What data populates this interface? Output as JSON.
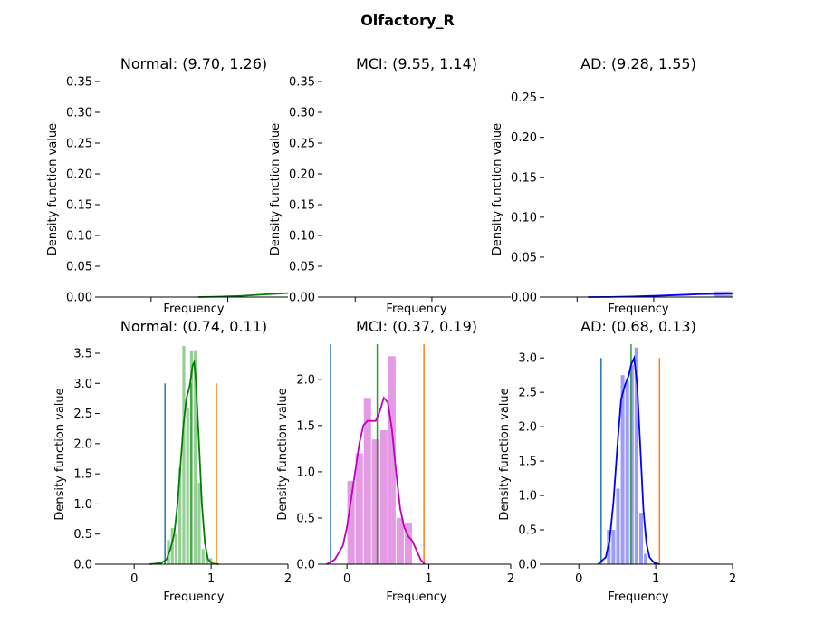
{
  "figure": {
    "title": "Olfactory_R"
  },
  "colors": {
    "normal": "#008000",
    "mci": "#bf00bf",
    "ad": "#0000ff",
    "normal_hist": "#82c782",
    "mci_hist": "#e088e0",
    "ad_hist": "#8c8cf5",
    "vline_left": "#1f77b4",
    "vline_mid": "#2ca02c",
    "vline_right": "#ff7f0e"
  },
  "chart_data": [
    {
      "type": "line",
      "title": "Normal: (9.70, 1.26)",
      "xlabel": "Frequency",
      "ylabel": "Density function value",
      "xlim": [
        0.1,
        1.82
      ],
      "ylim": [
        0,
        0.35
      ],
      "yticks": [
        "0.00",
        "0.05",
        "0.10",
        "0.15",
        "0.20",
        "0.25",
        "0.30",
        "0.35"
      ],
      "ytick_values": [
        0,
        0.05,
        0.1,
        0.15,
        0.2,
        0.25,
        0.3,
        0.35
      ],
      "xtick_values": [
        0.57,
        1.27
      ],
      "show_xtick_labels": false,
      "color_key": "normal",
      "curve": {
        "x": [
          1.0,
          1.2,
          1.4,
          1.6,
          1.82
        ],
        "y": [
          0.0,
          0.0008,
          0.002,
          0.0042,
          0.0065
        ]
      },
      "histogram": null,
      "vlines": []
    },
    {
      "type": "line",
      "title": "MCI: (9.55, 1.14)",
      "xlabel": "Frequency",
      "ylabel": "Density function value",
      "xlim": [
        0.1,
        1.82
      ],
      "ylim": [
        0,
        0.35
      ],
      "yticks": [
        "0.00",
        "0.05",
        "0.10",
        "0.15",
        "0.20",
        "0.25",
        "0.30",
        "0.35"
      ],
      "ytick_values": [
        0,
        0.05,
        0.1,
        0.15,
        0.2,
        0.25,
        0.3,
        0.35
      ],
      "xtick_values": [
        0.4,
        1.1
      ],
      "show_xtick_labels": false,
      "color_key": "mci",
      "curve": null,
      "histogram": null,
      "vlines": []
    },
    {
      "type": "line",
      "title": "AD: (9.28, 1.55)",
      "xlabel": "Frequency",
      "ylabel": "Density function value",
      "xlim": [
        0.1,
        1.82
      ],
      "ylim": [
        0,
        0.27
      ],
      "yticks": [
        "0.00",
        "0.05",
        "0.10",
        "0.15",
        "0.20",
        "0.25"
      ],
      "ytick_values": [
        0,
        0.05,
        0.1,
        0.15,
        0.2,
        0.25
      ],
      "xtick_values": [
        0.4,
        1.1
      ],
      "show_xtick_labels": false,
      "color_key": "ad",
      "curve": {
        "x": [
          0.5,
          0.7,
          0.9,
          1.1,
          1.3,
          1.5,
          1.7,
          1.82
        ],
        "y": [
          0.0,
          0.0001,
          0.0007,
          0.0015,
          0.0025,
          0.0035,
          0.0042,
          0.0045
        ]
      },
      "histogram": {
        "bins": [
          [
            1.65,
            1.82
          ]
        ],
        "heights": [
          0.007
        ]
      },
      "vlines": []
    },
    {
      "type": "line",
      "title": "Normal: (0.74, 0.11)",
      "xlabel": "Frequency",
      "ylabel": "Density function value",
      "xlim": [
        -0.45,
        2
      ],
      "ylim": [
        0,
        3.65
      ],
      "yticks": [
        "0.0",
        "0.5",
        "1.0",
        "1.5",
        "2.0",
        "2.5",
        "3.0",
        "3.5"
      ],
      "ytick_values": [
        0,
        0.5,
        1,
        1.5,
        2,
        2.5,
        3,
        3.5
      ],
      "xtick_values": [
        0,
        1,
        2
      ],
      "xtick_labels": [
        "0",
        "1",
        "2"
      ],
      "show_xtick_labels": true,
      "color_key": "normal",
      "curve": {
        "x": [
          0.2,
          0.35,
          0.42,
          0.47,
          0.52,
          0.56,
          0.6,
          0.64,
          0.68,
          0.7,
          0.72,
          0.74,
          0.76,
          0.78,
          0.8,
          0.82,
          0.85,
          0.88,
          0.92,
          0.96,
          1.02,
          1.1
        ],
        "y": [
          0.0,
          0.02,
          0.08,
          0.25,
          0.5,
          0.95,
          1.6,
          2.3,
          2.75,
          2.85,
          2.95,
          3.1,
          3.3,
          3.35,
          3.1,
          2.6,
          1.8,
          1.0,
          0.35,
          0.08,
          0.01,
          0.0
        ]
      },
      "histogram": {
        "bins": [
          [
            0.42,
            0.47
          ],
          [
            0.47,
            0.52
          ],
          [
            0.52,
            0.57
          ],
          [
            0.57,
            0.62
          ],
          [
            0.62,
            0.67
          ],
          [
            0.67,
            0.72
          ],
          [
            0.72,
            0.77
          ],
          [
            0.77,
            0.82
          ],
          [
            0.82,
            0.87
          ],
          [
            0.87,
            0.92
          ],
          [
            0.92,
            0.97
          ],
          [
            0.97,
            1.02
          ]
        ],
        "heights": [
          0.4,
          0.6,
          0.5,
          1.6,
          3.62,
          2.6,
          3.55,
          3.55,
          1.35,
          0.25,
          0.15,
          0.1
        ]
      },
      "vlines": [
        {
          "x": 0.4,
          "y": 3.0,
          "color_key": "vline_left"
        },
        {
          "x": 0.74,
          "y": 3.0,
          "color_key": "vline_mid"
        },
        {
          "x": 1.07,
          "y": 3.0,
          "color_key": "vline_right"
        }
      ]
    },
    {
      "type": "line",
      "title": "MCI: (0.37, 0.19)",
      "xlabel": "Frequency",
      "ylabel": "Density function value",
      "xlim": [
        -0.3,
        2
      ],
      "ylim": [
        0,
        2.38
      ],
      "yticks": [
        "0.0",
        "0.5",
        "1.0",
        "1.5",
        "2.0"
      ],
      "ytick_values": [
        0,
        0.5,
        1,
        1.5,
        2
      ],
      "xtick_values": [
        0,
        1,
        2
      ],
      "xtick_labels": [
        "0",
        "1",
        "2"
      ],
      "show_xtick_labels": true,
      "color_key": "mci",
      "curve": {
        "x": [
          -0.25,
          -0.15,
          -0.05,
          0.0,
          0.05,
          0.1,
          0.15,
          0.2,
          0.25,
          0.3,
          0.35,
          0.4,
          0.45,
          0.5,
          0.55,
          0.6,
          0.65,
          0.7,
          0.75,
          0.8,
          0.85,
          0.9,
          0.95
        ],
        "y": [
          0.0,
          0.05,
          0.2,
          0.4,
          0.7,
          1.0,
          1.3,
          1.5,
          1.55,
          1.55,
          1.55,
          1.65,
          1.8,
          1.75,
          1.45,
          1.0,
          0.6,
          0.4,
          0.3,
          0.25,
          0.15,
          0.05,
          0.0
        ]
      },
      "histogram": {
        "bins": [
          [
            0.0,
            0.1
          ],
          [
            0.1,
            0.2
          ],
          [
            0.2,
            0.3
          ],
          [
            0.3,
            0.4
          ],
          [
            0.4,
            0.5
          ],
          [
            0.5,
            0.6
          ],
          [
            0.6,
            0.7
          ],
          [
            0.7,
            0.8
          ]
        ],
        "heights": [
          0.9,
          1.2,
          1.8,
          1.35,
          1.45,
          2.25,
          0.5,
          0.45
        ]
      },
      "vlines": [
        {
          "x": -0.2,
          "y": 2.38,
          "color_key": "vline_left"
        },
        {
          "x": 0.37,
          "y": 2.38,
          "color_key": "vline_mid"
        },
        {
          "x": 0.94,
          "y": 2.38,
          "color_key": "vline_right"
        }
      ]
    },
    {
      "type": "line",
      "title": "AD: (0.68, 0.13)",
      "xlabel": "Frequency",
      "ylabel": "Density function value",
      "xlim": [
        -0.45,
        2
      ],
      "ylim": [
        0,
        3.2
      ],
      "yticks": [
        "0.0",
        "0.5",
        "1.0",
        "1.5",
        "2.0",
        "2.5",
        "3.0"
      ],
      "ytick_values": [
        0,
        0.5,
        1,
        1.5,
        2,
        2.5,
        3
      ],
      "xtick_values": [
        0,
        1,
        2
      ],
      "xtick_labels": [
        "0",
        "1",
        "2"
      ],
      "show_xtick_labels": true,
      "color_key": "ad",
      "curve": {
        "x": [
          0.25,
          0.35,
          0.4,
          0.45,
          0.5,
          0.55,
          0.6,
          0.65,
          0.68,
          0.72,
          0.76,
          0.8,
          0.84,
          0.88,
          0.92,
          0.98,
          1.05
        ],
        "y": [
          0.0,
          0.1,
          0.35,
          0.9,
          1.7,
          2.4,
          2.6,
          2.75,
          2.9,
          3.0,
          2.6,
          1.7,
          0.8,
          0.3,
          0.1,
          0.02,
          0.0
        ]
      },
      "histogram": {
        "bins": [
          [
            0.36,
            0.42
          ],
          [
            0.42,
            0.48
          ],
          [
            0.48,
            0.54
          ],
          [
            0.54,
            0.6
          ],
          [
            0.6,
            0.66
          ],
          [
            0.66,
            0.72
          ],
          [
            0.72,
            0.78
          ],
          [
            0.78,
            0.84
          ],
          [
            0.84,
            0.9
          ]
        ],
        "heights": [
          0.5,
          0.5,
          1.1,
          2.75,
          2.65,
          2.9,
          3.15,
          0.75,
          0.15
        ]
      },
      "vlines": [
        {
          "x": 0.29,
          "y": 3.0,
          "color_key": "vline_left"
        },
        {
          "x": 0.68,
          "y": 3.2,
          "color_key": "vline_mid"
        },
        {
          "x": 1.05,
          "y": 3.0,
          "color_key": "vline_right"
        }
      ]
    }
  ]
}
